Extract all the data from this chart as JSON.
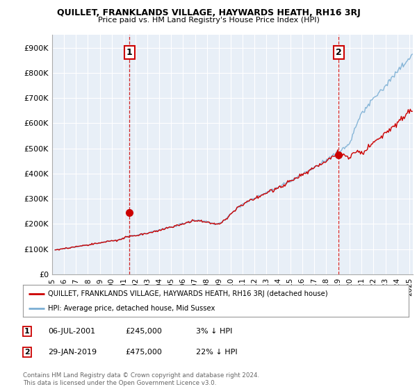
{
  "title": "QUILLET, FRANKLANDS VILLAGE, HAYWARDS HEATH, RH16 3RJ",
  "subtitle": "Price paid vs. HM Land Registry's House Price Index (HPI)",
  "ylabel_ticks": [
    "£0",
    "£100K",
    "£200K",
    "£300K",
    "£400K",
    "£500K",
    "£600K",
    "£700K",
    "£800K",
    "£900K"
  ],
  "ytick_values": [
    0,
    100000,
    200000,
    300000,
    400000,
    500000,
    600000,
    700000,
    800000,
    900000
  ],
  "ylim": [
    0,
    950000
  ],
  "xlim_start": 1995.3,
  "xlim_end": 2025.3,
  "hpi_color": "#7bafd4",
  "price_color": "#cc0000",
  "marker1_date": 2001.5,
  "marker1_price": 245000,
  "marker2_date": 2019.08,
  "marker2_price": 475000,
  "vline1_x": 2001.5,
  "vline2_x": 2019.08,
  "legend_line1": "QUILLET, FRANKLANDS VILLAGE, HAYWARDS HEATH, RH16 3RJ (detached house)",
  "legend_line2": "HPI: Average price, detached house, Mid Sussex",
  "table_row1": [
    "1",
    "06-JUL-2001",
    "£245,000",
    "3% ↓ HPI"
  ],
  "table_row2": [
    "2",
    "29-JAN-2019",
    "£475,000",
    "22% ↓ HPI"
  ],
  "footnote": "Contains HM Land Registry data © Crown copyright and database right 2024.\nThis data is licensed under the Open Government Licence v3.0.",
  "background_color": "#ffffff",
  "plot_bg_color": "#e8eff7",
  "grid_color": "#ffffff"
}
